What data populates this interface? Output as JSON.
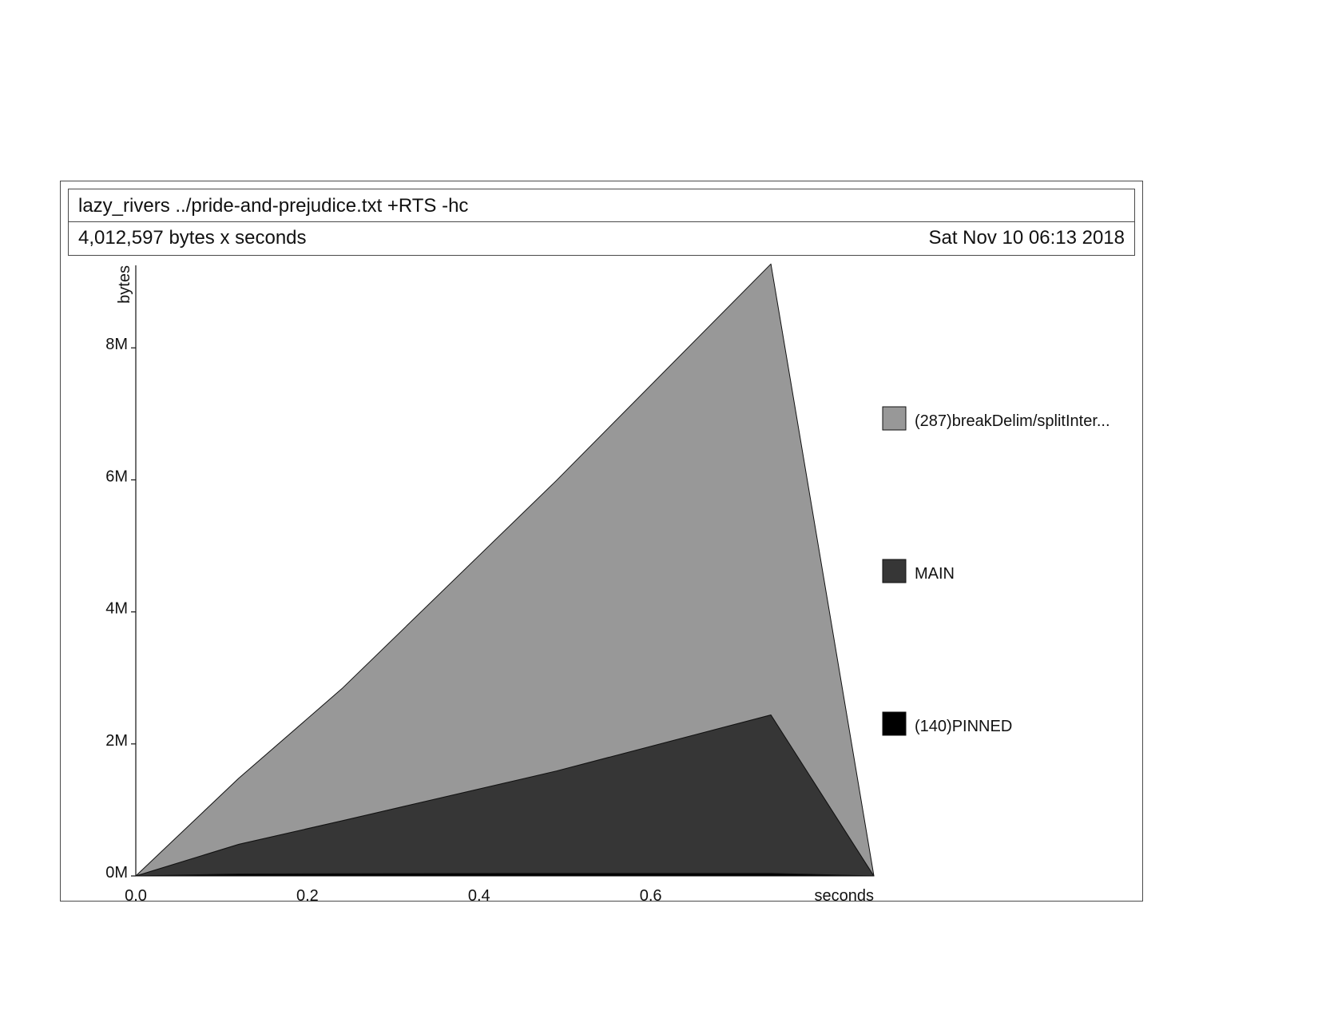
{
  "header": {
    "title": "lazy_rivers ../pride-and-prejudice.txt +RTS -hc",
    "subtitle": "4,012,597 bytes x seconds",
    "date": "Sat Nov 10 06:13 2018"
  },
  "chart_data": {
    "type": "area",
    "stacked": true,
    "x": [
      0.0,
      0.12,
      0.24,
      0.49,
      0.74,
      0.86
    ],
    "series": [
      {
        "name": "(140)PINNED",
        "values": [
          0,
          30000,
          35000,
          40000,
          40000,
          0
        ],
        "color": "#000000"
      },
      {
        "name": "MAIN",
        "values": [
          0,
          450000,
          800000,
          1550000,
          2400000,
          0
        ],
        "color": "#363636"
      },
      {
        "name": "(287)breakDelim/splitInter...",
        "values": [
          0,
          1000000,
          2000000,
          4400000,
          6830000,
          0
        ],
        "color": "#989898"
      }
    ],
    "xlabel": "seconds",
    "ylabel": "bytes",
    "xlim": [
      0,
      0.86
    ],
    "ylim": [
      0,
      9250000
    ],
    "xticks": [
      0.0,
      0.2,
      0.4,
      0.6
    ],
    "xtick_labels": [
      "0.0",
      "0.2",
      "0.4",
      "0.6"
    ],
    "yticks": [
      0,
      2000000,
      4000000,
      6000000,
      8000000
    ],
    "ytick_labels": [
      "0M",
      "2M",
      "4M",
      "6M",
      "8M"
    ],
    "legend_position": "right",
    "grid": false
  }
}
